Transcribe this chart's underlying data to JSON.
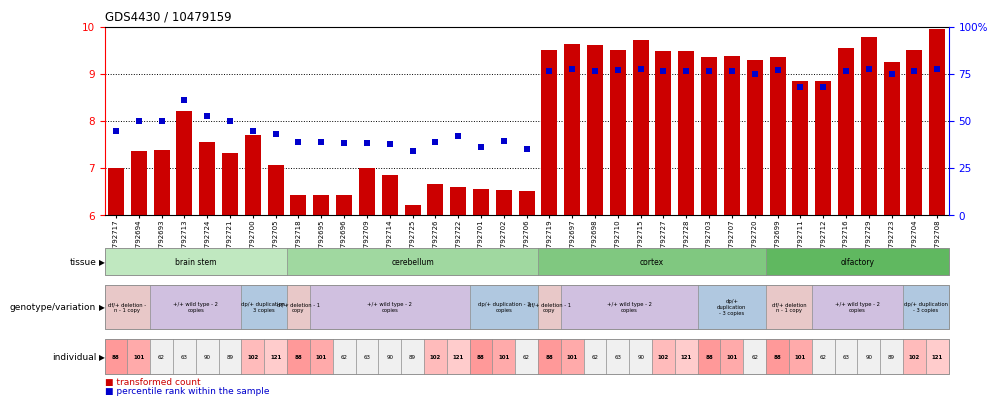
{
  "title": "GDS4430 / 10479159",
  "gsm_labels": [
    "GSM792717",
    "GSM792694",
    "GSM792693",
    "GSM792713",
    "GSM792724",
    "GSM792721",
    "GSM792700",
    "GSM792705",
    "GSM792718",
    "GSM792695",
    "GSM792696",
    "GSM792709",
    "GSM792714",
    "GSM792725",
    "GSM792726",
    "GSM792722",
    "GSM792701",
    "GSM792702",
    "GSM792706",
    "GSM792719",
    "GSM792697",
    "GSM792698",
    "GSM792710",
    "GSM792715",
    "GSM792727",
    "GSM792728",
    "GSM792703",
    "GSM792707",
    "GSM792720",
    "GSM792699",
    "GSM792711",
    "GSM792712",
    "GSM792716",
    "GSM792729",
    "GSM792723",
    "GSM792704",
    "GSM792708"
  ],
  "bar_values": [
    7.0,
    7.35,
    7.37,
    8.2,
    7.55,
    7.32,
    7.7,
    7.05,
    6.42,
    6.42,
    6.42,
    7.0,
    6.85,
    6.2,
    6.65,
    6.6,
    6.55,
    6.52,
    6.5,
    9.5,
    9.62,
    9.6,
    9.5,
    9.72,
    9.48,
    9.48,
    9.35,
    9.38,
    9.3,
    9.35,
    8.85,
    8.85,
    9.55,
    9.78,
    9.25,
    9.5,
    9.95
  ],
  "dot_values": [
    7.78,
    8.0,
    8.0,
    8.45,
    8.1,
    8.0,
    7.78,
    7.72,
    7.55,
    7.55,
    7.52,
    7.52,
    7.5,
    7.35,
    7.55,
    7.68,
    7.45,
    7.58,
    7.4,
    9.05,
    9.1,
    9.05,
    9.08,
    9.1,
    9.05,
    9.05,
    9.05,
    9.05,
    9.0,
    9.08,
    8.72,
    8.72,
    9.05,
    9.1,
    9.0,
    9.05,
    9.1
  ],
  "bar_color": "#cc0000",
  "dot_color": "#0000cc",
  "ymin": 6,
  "ymax": 10,
  "yticks_left": [
    6,
    7,
    8,
    9,
    10
  ],
  "yticks_right_labels": [
    "0",
    "25",
    "50",
    "75",
    "100%"
  ],
  "tissue_rows": [
    {
      "label": "brain stem",
      "start": 0,
      "end": 7,
      "color": "#c0e8c0"
    },
    {
      "label": "cerebellum",
      "start": 8,
      "end": 18,
      "color": "#a0d8a0"
    },
    {
      "label": "cortex",
      "start": 19,
      "end": 28,
      "color": "#80c880"
    },
    {
      "label": "olfactory",
      "start": 29,
      "end": 36,
      "color": "#60b860"
    }
  ],
  "geno_rows": [
    {
      "label": "df/+ deletion -\nn - 1 copy",
      "start": 0,
      "end": 1,
      "color": "#e8c8c8"
    },
    {
      "label": "+/+ wild type - 2\ncopies",
      "start": 2,
      "end": 5,
      "color": "#d0c0e0"
    },
    {
      "label": "dp/+ duplication -\n3 copies",
      "start": 6,
      "end": 7,
      "color": "#b0c8e0"
    },
    {
      "label": "df/+ deletion - 1\ncopy",
      "start": 8,
      "end": 8,
      "color": "#e8c8c8"
    },
    {
      "label": "+/+ wild type - 2\ncopies",
      "start": 9,
      "end": 15,
      "color": "#d0c0e0"
    },
    {
      "label": "dp/+ duplication - 3\ncopies",
      "start": 16,
      "end": 18,
      "color": "#b0c8e0"
    },
    {
      "label": "df/+ deletion - 1\ncopy",
      "start": 19,
      "end": 19,
      "color": "#e8c8c8"
    },
    {
      "label": "+/+ wild type - 2\ncopies",
      "start": 20,
      "end": 25,
      "color": "#d0c0e0"
    },
    {
      "label": "dp/+\nduplication\n- 3 copies",
      "start": 26,
      "end": 28,
      "color": "#b0c8e0"
    },
    {
      "label": "df/+ deletion\nn - 1 copy",
      "start": 29,
      "end": 30,
      "color": "#e8c8c8"
    },
    {
      "label": "+/+ wild type - 2\ncopies",
      "start": 31,
      "end": 34,
      "color": "#d0c0e0"
    },
    {
      "label": "dp/+ duplication\n- 3 copies",
      "start": 35,
      "end": 36,
      "color": "#b0c8e0"
    }
  ],
  "indiv_per_bar": [
    88,
    101,
    62,
    63,
    90,
    89,
    102,
    121,
    88,
    101,
    62,
    63,
    90,
    89,
    102,
    121,
    88,
    101,
    62,
    88,
    101,
    62,
    63,
    90,
    102,
    121,
    88,
    101,
    62,
    88,
    101,
    62,
    63,
    90,
    89,
    102,
    121
  ],
  "indiv_color_map": {
    "88": "#ff9999",
    "101": "#ffaaaa",
    "62": "#f0f0f0",
    "63": "#f0f0f0",
    "90": "#f0f0f0",
    "89": "#f0f0f0",
    "102": "#ffbbbb",
    "121": "#ffcccc"
  }
}
